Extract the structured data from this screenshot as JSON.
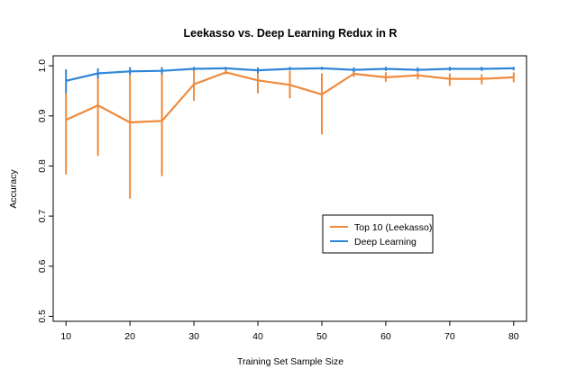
{
  "chart_data": {
    "type": "line",
    "title": "Leekasso vs. Deep Learning Redux in R",
    "xlabel": "Training Set Sample Size",
    "ylabel": "Accuracy",
    "xlim": [
      8,
      82
    ],
    "ylim": [
      0.49,
      1.02
    ],
    "x_ticks": [
      "10",
      "20",
      "30",
      "40",
      "50",
      "60",
      "70",
      "80"
    ],
    "y_ticks": [
      "0.5",
      "0.6",
      "0.7",
      "0.8",
      "0.9",
      "1.0"
    ],
    "x": [
      10,
      15,
      20,
      25,
      30,
      35,
      40,
      45,
      50,
      55,
      60,
      65,
      70,
      75,
      80
    ],
    "legend_position": "center-right",
    "series": [
      {
        "name": "Top 10 (Leekasso)",
        "color": "#f08a3c",
        "values": [
          0.892,
          0.921,
          0.887,
          0.89,
          0.963,
          0.987,
          0.971,
          0.962,
          0.943,
          0.984,
          0.977,
          0.981,
          0.974,
          0.974,
          0.977
        ],
        "error_low": [
          0.783,
          0.82,
          0.735,
          0.78,
          0.93,
          0.983,
          0.945,
          0.935,
          0.863,
          0.978,
          0.968,
          0.973,
          0.96,
          0.963,
          0.967
        ],
        "error_high": [
          0.945,
          0.985,
          0.997,
          0.997,
          0.997,
          0.995,
          0.995,
          0.99,
          0.985,
          0.99,
          0.987,
          0.987,
          0.985,
          0.983,
          0.987
        ]
      },
      {
        "name": "Deep Learning",
        "color": "#2f86d8",
        "values": [
          0.97,
          0.985,
          0.989,
          0.99,
          0.994,
          0.995,
          0.991,
          0.994,
          0.995,
          0.992,
          0.994,
          0.992,
          0.994,
          0.994,
          0.995
        ],
        "error_low": [
          0.945,
          0.975,
          0.982,
          0.983,
          0.991,
          0.992,
          0.985,
          0.991,
          0.992,
          0.987,
          0.99,
          0.988,
          0.99,
          0.99,
          0.991
        ],
        "error_high": [
          0.993,
          0.995,
          0.997,
          0.997,
          0.998,
          0.998,
          0.997,
          0.998,
          0.998,
          0.997,
          0.998,
          0.997,
          0.998,
          0.998,
          0.998
        ]
      }
    ]
  }
}
